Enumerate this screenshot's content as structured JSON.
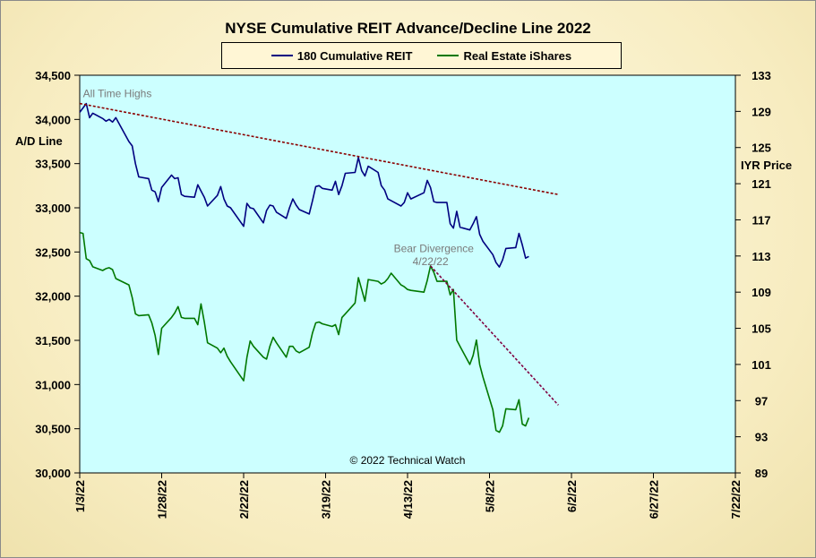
{
  "chart_data": {
    "type": "line",
    "title": "NYSE Cumulative  REIT Advance/Decline Line 2022",
    "ylabel_left": "A/D Line",
    "ylabel_right": "IYR Price",
    "ylim_left": [
      30000,
      34500
    ],
    "ylim_right": [
      89,
      133
    ],
    "xlim": [
      "1/3/22",
      "7/22/22"
    ],
    "x_ticks": [
      "1/3/22",
      "1/28/22",
      "2/22/22",
      "3/19/22",
      "4/13/22",
      "5/8/22",
      "6/2/22",
      "6/27/22",
      "7/22/22"
    ],
    "y_ticks_left": [
      "30,000",
      "30,500",
      "31,000",
      "31,500",
      "32,000",
      "32,500",
      "33,000",
      "33,500",
      "34,000",
      "34,500"
    ],
    "y_ticks_right": [
      "89",
      "93",
      "97",
      "101",
      "105",
      "109",
      "113",
      "117",
      "121",
      "125",
      "129",
      "133"
    ],
    "grid": false,
    "legend_position": "top-center",
    "series": [
      {
        "name": "180 Cumulative REIT",
        "axis": "left",
        "color": "#000080",
        "points": [
          [
            "1/3/22",
            34080
          ],
          [
            "1/4/22",
            34130
          ],
          [
            "1/5/22",
            34180
          ],
          [
            "1/6/22",
            34020
          ],
          [
            "1/7/22",
            34070
          ],
          [
            "1/10/22",
            34010
          ],
          [
            "1/11/22",
            33980
          ],
          [
            "1/12/22",
            34000
          ],
          [
            "1/13/22",
            33970
          ],
          [
            "1/14/22",
            34020
          ],
          [
            "1/18/22",
            33750
          ],
          [
            "1/19/22",
            33700
          ],
          [
            "1/20/22",
            33500
          ],
          [
            "1/21/22",
            33350
          ],
          [
            "1/24/22",
            33330
          ],
          [
            "1/25/22",
            33200
          ],
          [
            "1/26/22",
            33180
          ],
          [
            "1/27/22",
            33070
          ],
          [
            "1/28/22",
            33230
          ],
          [
            "1/31/22",
            33370
          ],
          [
            "2/1/22",
            33330
          ],
          [
            "2/2/22",
            33340
          ],
          [
            "2/3/22",
            33150
          ],
          [
            "2/4/22",
            33130
          ],
          [
            "2/7/22",
            33120
          ],
          [
            "2/8/22",
            33260
          ],
          [
            "2/9/22",
            33190
          ],
          [
            "2/10/22",
            33120
          ],
          [
            "2/11/22",
            33020
          ],
          [
            "2/14/22",
            33140
          ],
          [
            "2/15/22",
            33240
          ],
          [
            "2/16/22",
            33100
          ],
          [
            "2/17/22",
            33020
          ],
          [
            "2/18/22",
            33000
          ],
          [
            "2/22/22",
            32790
          ],
          [
            "2/23/22",
            33050
          ],
          [
            "2/24/22",
            33000
          ],
          [
            "2/25/22",
            32990
          ],
          [
            "2/28/22",
            32830
          ],
          [
            "3/1/22",
            32970
          ],
          [
            "3/2/22",
            33030
          ],
          [
            "3/3/22",
            33020
          ],
          [
            "3/4/22",
            32950
          ],
          [
            "3/7/22",
            32880
          ],
          [
            "3/8/22",
            33000
          ],
          [
            "3/9/22",
            33100
          ],
          [
            "3/10/22",
            33030
          ],
          [
            "3/11/22",
            32980
          ],
          [
            "3/14/22",
            32930
          ],
          [
            "3/15/22",
            33080
          ],
          [
            "3/16/22",
            33240
          ],
          [
            "3/17/22",
            33250
          ],
          [
            "3/18/22",
            33220
          ],
          [
            "3/21/22",
            33200
          ],
          [
            "3/22/22",
            33300
          ],
          [
            "3/23/22",
            33150
          ],
          [
            "3/24/22",
            33250
          ],
          [
            "3/25/22",
            33390
          ],
          [
            "3/28/22",
            33400
          ],
          [
            "3/29/22",
            33570
          ],
          [
            "3/30/22",
            33420
          ],
          [
            "3/31/22",
            33360
          ],
          [
            "4/1/22",
            33470
          ],
          [
            "4/4/22",
            33400
          ],
          [
            "4/5/22",
            33250
          ],
          [
            "4/6/22",
            33200
          ],
          [
            "4/7/22",
            33100
          ],
          [
            "4/8/22",
            33080
          ],
          [
            "4/11/22",
            33020
          ],
          [
            "4/12/22",
            33060
          ],
          [
            "4/13/22",
            33170
          ],
          [
            "4/14/22",
            33100
          ],
          [
            "4/18/22",
            33170
          ],
          [
            "4/19/22",
            33310
          ],
          [
            "4/20/22",
            33230
          ],
          [
            "4/21/22",
            33070
          ],
          [
            "4/22/22",
            33060
          ],
          [
            "4/25/22",
            33060
          ],
          [
            "4/26/22",
            32820
          ],
          [
            "4/27/22",
            32770
          ],
          [
            "4/28/22",
            32960
          ],
          [
            "4/29/22",
            32780
          ],
          [
            "5/2/22",
            32750
          ],
          [
            "5/3/22",
            32820
          ],
          [
            "5/4/22",
            32900
          ],
          [
            "5/5/22",
            32700
          ],
          [
            "5/6/22",
            32620
          ],
          [
            "5/9/22",
            32470
          ],
          [
            "5/10/22",
            32380
          ],
          [
            "5/11/22",
            32330
          ],
          [
            "5/12/22",
            32410
          ],
          [
            "5/13/22",
            32540
          ],
          [
            "5/16/22",
            32550
          ],
          [
            "5/17/22",
            32710
          ],
          [
            "5/18/22",
            32580
          ],
          [
            "5/19/22",
            32430
          ],
          [
            "5/20/22",
            32450
          ]
        ]
      },
      {
        "name": "Real Estate iShares",
        "axis": "right",
        "color": "#007800",
        "points": [
          [
            "1/3/22",
            115.6
          ],
          [
            "1/4/22",
            115.5
          ],
          [
            "1/5/22",
            112.7
          ],
          [
            "1/6/22",
            112.5
          ],
          [
            "1/7/22",
            111.8
          ],
          [
            "1/10/22",
            111.4
          ],
          [
            "1/11/22",
            111.6
          ],
          [
            "1/12/22",
            111.7
          ],
          [
            "1/13/22",
            111.5
          ],
          [
            "1/14/22",
            110.5
          ],
          [
            "1/18/22",
            109.8
          ],
          [
            "1/19/22",
            108.4
          ],
          [
            "1/20/22",
            106.6
          ],
          [
            "1/21/22",
            106.4
          ],
          [
            "1/24/22",
            106.5
          ],
          [
            "1/25/22",
            105.6
          ],
          [
            "1/26/22",
            104.2
          ],
          [
            "1/27/22",
            102.1
          ],
          [
            "1/28/22",
            105.0
          ],
          [
            "1/31/22",
            106.2
          ],
          [
            "2/1/22",
            106.7
          ],
          [
            "2/2/22",
            107.4
          ],
          [
            "2/3/22",
            106.2
          ],
          [
            "2/4/22",
            106.1
          ],
          [
            "2/7/22",
            106.1
          ],
          [
            "2/8/22",
            105.4
          ],
          [
            "2/9/22",
            107.7
          ],
          [
            "2/10/22",
            105.7
          ],
          [
            "2/11/22",
            103.4
          ],
          [
            "2/14/22",
            102.8
          ],
          [
            "2/15/22",
            102.3
          ],
          [
            "2/16/22",
            102.8
          ],
          [
            "2/17/22",
            101.9
          ],
          [
            "2/18/22",
            101.3
          ],
          [
            "2/22/22",
            99.2
          ],
          [
            "2/23/22",
            101.8
          ],
          [
            "2/24/22",
            103.6
          ],
          [
            "2/25/22",
            103.0
          ],
          [
            "2/28/22",
            101.8
          ],
          [
            "3/1/22",
            101.6
          ],
          [
            "3/2/22",
            103.0
          ],
          [
            "3/3/22",
            104.0
          ],
          [
            "3/4/22",
            103.4
          ],
          [
            "3/7/22",
            101.8
          ],
          [
            "3/8/22",
            103.0
          ],
          [
            "3/9/22",
            103.0
          ],
          [
            "3/10/22",
            102.5
          ],
          [
            "3/11/22",
            102.3
          ],
          [
            "3/14/22",
            102.9
          ],
          [
            "3/15/22",
            104.5
          ],
          [
            "3/16/22",
            105.6
          ],
          [
            "3/17/22",
            105.7
          ],
          [
            "3/18/22",
            105.5
          ],
          [
            "3/21/22",
            105.2
          ],
          [
            "3/22/22",
            105.4
          ],
          [
            "3/23/22",
            104.3
          ],
          [
            "3/24/22",
            106.2
          ],
          [
            "3/25/22",
            106.6
          ],
          [
            "3/28/22",
            107.8
          ],
          [
            "3/29/22",
            110.6
          ],
          [
            "3/30/22",
            109.3
          ],
          [
            "3/31/22",
            108.0
          ],
          [
            "4/1/22",
            110.4
          ],
          [
            "4/4/22",
            110.2
          ],
          [
            "4/5/22",
            109.9
          ],
          [
            "4/6/22",
            110.1
          ],
          [
            "4/7/22",
            110.5
          ],
          [
            "4/8/22",
            111.1
          ],
          [
            "4/11/22",
            109.8
          ],
          [
            "4/12/22",
            109.6
          ],
          [
            "4/13/22",
            109.3
          ],
          [
            "4/14/22",
            109.2
          ],
          [
            "4/18/22",
            109.0
          ],
          [
            "4/19/22",
            110.3
          ],
          [
            "4/20/22",
            111.9
          ],
          [
            "4/21/22",
            111.2
          ],
          [
            "4/22/22",
            110.2
          ],
          [
            "4/25/22",
            110.2
          ],
          [
            "4/26/22",
            108.7
          ],
          [
            "4/27/22",
            109.3
          ],
          [
            "4/28/22",
            103.7
          ],
          [
            "4/29/22",
            103.0
          ],
          [
            "5/2/22",
            101.0
          ],
          [
            "5/3/22",
            102.0
          ],
          [
            "5/4/22",
            103.7
          ],
          [
            "5/5/22",
            101.0
          ],
          [
            "5/6/22",
            99.6
          ],
          [
            "5/9/22",
            96.0
          ],
          [
            "5/10/22",
            93.7
          ],
          [
            "5/11/22",
            93.5
          ],
          [
            "5/12/22",
            94.2
          ],
          [
            "5/13/22",
            96.1
          ],
          [
            "5/16/22",
            96.0
          ],
          [
            "5/17/22",
            97.1
          ],
          [
            "5/18/22",
            94.4
          ],
          [
            "5/19/22",
            94.2
          ],
          [
            "5/20/22",
            95.1
          ]
        ]
      }
    ],
    "trendlines": [
      {
        "from": [
          "1/3/22",
          34180
        ],
        "to": [
          "5/29/22",
          33150
        ],
        "axis": "left",
        "color": "#8b0000"
      },
      {
        "from": [
          "4/20/22",
          111.9
        ],
        "to": [
          "5/29/22",
          96.5
        ],
        "axis": "right",
        "color": "#800040"
      }
    ],
    "annotations": [
      {
        "text": "All Time Highs",
        "x": "1/4/22",
        "y": 34250,
        "axis": "left"
      },
      {
        "text": "Bear Divergence",
        "x": "4/21/22",
        "y": 32500,
        "axis": "left",
        "align": "middle"
      },
      {
        "text": "4/22/22",
        "x": "4/20/22",
        "y": 32350,
        "axis": "left",
        "align": "middle"
      },
      {
        "text": "© 2022 Technical  Watch",
        "x": "4/13/22",
        "y": 30100,
        "axis": "left",
        "align": "middle"
      }
    ]
  }
}
